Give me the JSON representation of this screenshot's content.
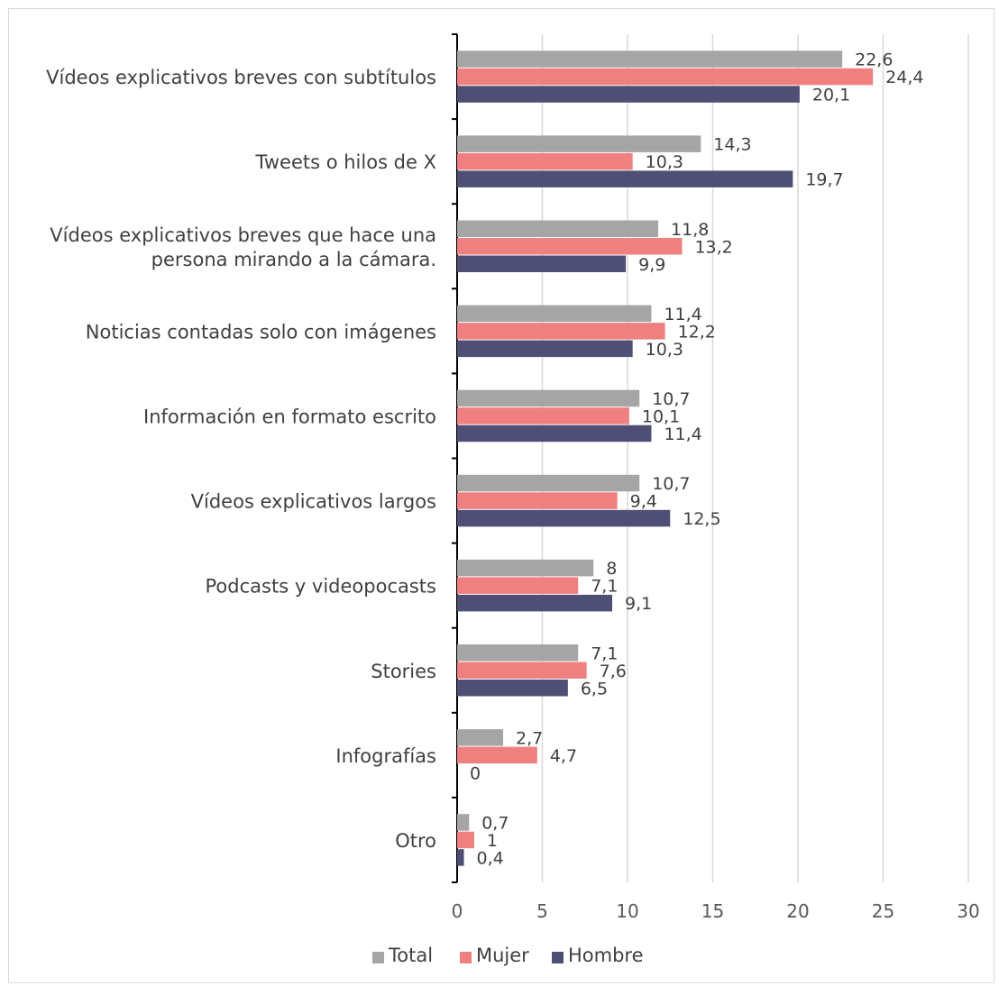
{
  "chart_data": {
    "type": "bar",
    "orientation": "horizontal",
    "categories": [
      "Vídeos explicativos breves con subtítulos",
      "Tweets o hilos de X",
      "Vídeos explicativos breves que hace una persona mirando a la cámara.",
      "Noticias contadas solo con imágenes",
      "Información en formato escrito",
      "Vídeos explicativos largos",
      "Podcasts y videopocasts",
      "Stories",
      "Infografías",
      "Otro"
    ],
    "category_lines": [
      [
        "Vídeos explicativos breves con subtítulos"
      ],
      [
        "Tweets o hilos de X"
      ],
      [
        "Vídeos explicativos breves que hace una",
        "persona mirando a la cámara."
      ],
      [
        "Noticias contadas solo con imágenes"
      ],
      [
        "Información en formato escrito"
      ],
      [
        "Vídeos explicativos largos"
      ],
      [
        "Podcasts y videopocasts"
      ],
      [
        "Stories"
      ],
      [
        "Infografías"
      ],
      [
        "Otro"
      ]
    ],
    "series": [
      {
        "name": "Total",
        "color": "#a5a5a5",
        "values": [
          22.6,
          14.3,
          11.8,
          11.4,
          10.7,
          10.7,
          8,
          7.1,
          2.7,
          0.7
        ],
        "labels": [
          "22,6",
          "14,3",
          "11,8",
          "11,4",
          "10,7",
          "10,7",
          "8",
          "7,1",
          "2,7",
          "0,7"
        ]
      },
      {
        "name": "Mujer",
        "color": "#f08080",
        "values": [
          24.4,
          10.3,
          13.2,
          12.2,
          10.1,
          9.4,
          7.1,
          7.6,
          4.7,
          1
        ],
        "labels": [
          "24,4",
          "10,3",
          "13,2",
          "12,2",
          "10,1",
          "9,4",
          "7,1",
          "7,6",
          "4,7",
          "1"
        ]
      },
      {
        "name": "Hombre",
        "color": "#4f4f75",
        "values": [
          20.1,
          19.7,
          9.9,
          10.3,
          11.4,
          12.5,
          9.1,
          6.5,
          0,
          0.4
        ],
        "labels": [
          "20,1",
          "19,7",
          "9,9",
          "10,3",
          "11,4",
          "12,5",
          "9,1",
          "6,5",
          "0",
          "0,4"
        ]
      }
    ],
    "xlim": [
      0,
      30
    ],
    "xticks": [
      "0",
      "5",
      "10",
      "15",
      "20",
      "25",
      "30"
    ],
    "grid": true,
    "legend_position": "bottom",
    "title": "",
    "xlabel": "",
    "ylabel": ""
  }
}
